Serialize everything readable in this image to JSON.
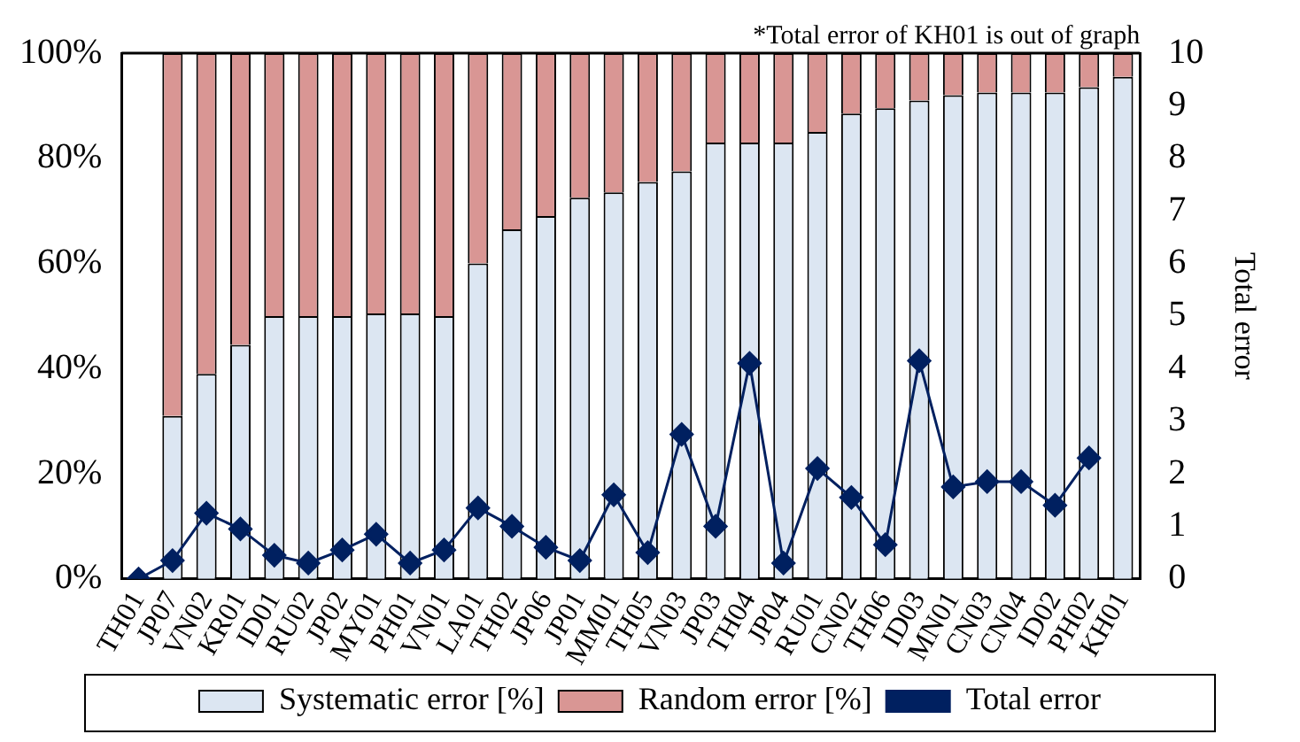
{
  "chart_data": {
    "type": "bar",
    "stacked": true,
    "y2label": "Total error",
    "annotations": [
      "*Total error of KH01 is out of graph"
    ],
    "categories": [
      "TH01",
      "JP07",
      "VN02",
      "KR01",
      "ID01",
      "RU02",
      "JP02",
      "MY01",
      "PH01",
      "VN01",
      "LA01",
      "TH02",
      "JP06",
      "JP01",
      "MM01",
      "TH05",
      "VN03",
      "JP03",
      "TH04",
      "JP04",
      "RU01",
      "CN02",
      "TH06",
      "ID03",
      "MN01",
      "CN03",
      "CN04",
      "ID02",
      "PH02",
      "KH01"
    ],
    "series": [
      {
        "name": "Systematic error [%]",
        "color": "#dce6f2",
        "values": [
          0,
          31,
          39,
          44.5,
          50,
          50,
          50,
          50.5,
          50.5,
          50,
          60,
          66.5,
          69,
          72.5,
          73.5,
          75.5,
          77.5,
          83,
          83,
          83,
          85,
          88.5,
          89.5,
          91,
          92,
          92.5,
          92.5,
          92.5,
          93.5,
          95.5
        ]
      },
      {
        "name": "Random error [%]",
        "color": "#d99694",
        "values": [
          0,
          69,
          61,
          55.5,
          50,
          50,
          50,
          49.5,
          49.5,
          50,
          40,
          33.5,
          31,
          27.5,
          26.5,
          24.5,
          22.5,
          17,
          17,
          17,
          15,
          11.5,
          10.5,
          9,
          8,
          7.5,
          7.5,
          7.5,
          6.5,
          4.5
        ]
      },
      {
        "name": "Total error",
        "type": "line",
        "axis": "y2",
        "color": "#002060",
        "marker": "diamond",
        "values": [
          0,
          0.35,
          1.25,
          0.95,
          0.45,
          0.3,
          0.55,
          0.85,
          0.3,
          0.55,
          1.35,
          1.0,
          0.6,
          0.35,
          1.6,
          0.5,
          2.75,
          1.0,
          4.1,
          0.3,
          2.1,
          1.55,
          0.65,
          4.15,
          1.75,
          1.85,
          1.85,
          1.4,
          2.3,
          null
        ]
      }
    ],
    "ylim": [
      0,
      100
    ],
    "yticks": [
      {
        "value": 0,
        "label": "0%"
      },
      {
        "value": 20,
        "label": "20%"
      },
      {
        "value": 40,
        "label": "40%"
      },
      {
        "value": 60,
        "label": "60%"
      },
      {
        "value": 80,
        "label": "80%"
      },
      {
        "value": 100,
        "label": "100%"
      }
    ],
    "y2lim": [
      0,
      10
    ],
    "y2ticks": [
      0,
      1,
      2,
      3,
      4,
      5,
      6,
      7,
      8,
      9,
      10
    ],
    "grid": false,
    "legend": "bottom"
  }
}
